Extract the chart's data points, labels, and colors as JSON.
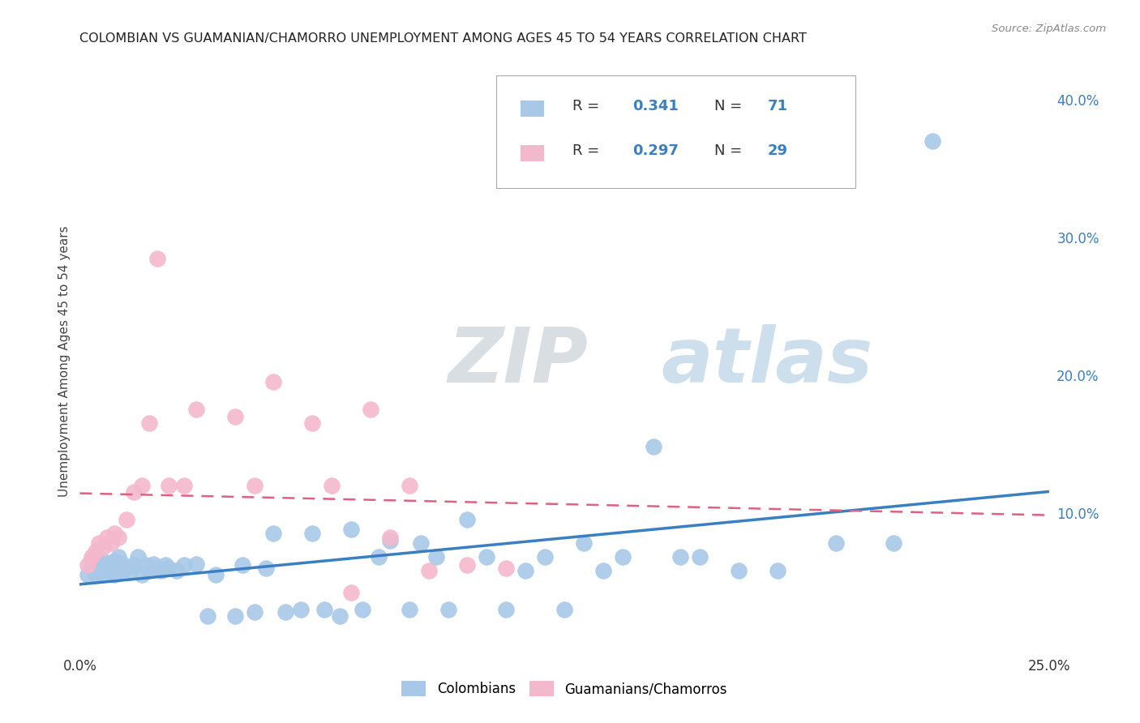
{
  "title": "COLOMBIAN VS GUAMANIAN/CHAMORRO UNEMPLOYMENT AMONG AGES 45 TO 54 YEARS CORRELATION CHART",
  "source": "Source: ZipAtlas.com",
  "ylabel": "Unemployment Among Ages 45 to 54 years",
  "xlim": [
    0.0,
    0.25
  ],
  "ylim": [
    0.0,
    0.42
  ],
  "yticks_right": [
    0.1,
    0.2,
    0.3,
    0.4
  ],
  "yticklabels_right": [
    "10.0%",
    "20.0%",
    "30.0%",
    "40.0%"
  ],
  "colombian_color": "#a8c8e8",
  "guamanian_color": "#f4b8cc",
  "colombian_line_color": "#3a7fc1",
  "guamanian_line_color": "#e06080",
  "R_colombian": 0.341,
  "N_colombian": 71,
  "R_guamanian": 0.297,
  "N_guamanian": 29,
  "legend_label_colombian": "Colombians",
  "legend_label_guamanian": "Guamanians/Chamorros",
  "colombian_x": [
    0.002,
    0.003,
    0.003,
    0.004,
    0.004,
    0.005,
    0.005,
    0.006,
    0.006,
    0.007,
    0.007,
    0.008,
    0.008,
    0.009,
    0.009,
    0.01,
    0.01,
    0.011,
    0.011,
    0.012,
    0.013,
    0.014,
    0.015,
    0.016,
    0.017,
    0.018,
    0.019,
    0.02,
    0.021,
    0.022,
    0.023,
    0.025,
    0.027,
    0.03,
    0.033,
    0.035,
    0.04,
    0.042,
    0.045,
    0.048,
    0.05,
    0.053,
    0.057,
    0.06,
    0.063,
    0.067,
    0.07,
    0.073,
    0.077,
    0.08,
    0.085,
    0.088,
    0.092,
    0.095,
    0.1,
    0.105,
    0.11,
    0.115,
    0.12,
    0.125,
    0.13,
    0.135,
    0.14,
    0.148,
    0.155,
    0.16,
    0.17,
    0.18,
    0.195,
    0.21,
    0.22
  ],
  "colombian_y": [
    0.055,
    0.06,
    0.065,
    0.055,
    0.068,
    0.058,
    0.062,
    0.055,
    0.065,
    0.058,
    0.063,
    0.06,
    0.058,
    0.065,
    0.055,
    0.062,
    0.068,
    0.058,
    0.063,
    0.06,
    0.058,
    0.062,
    0.068,
    0.055,
    0.062,
    0.058,
    0.063,
    0.06,
    0.058,
    0.062,
    0.06,
    0.058,
    0.062,
    0.063,
    0.025,
    0.055,
    0.025,
    0.062,
    0.028,
    0.06,
    0.085,
    0.028,
    0.03,
    0.085,
    0.03,
    0.025,
    0.088,
    0.03,
    0.068,
    0.08,
    0.03,
    0.078,
    0.068,
    0.03,
    0.095,
    0.068,
    0.03,
    0.058,
    0.068,
    0.03,
    0.078,
    0.058,
    0.068,
    0.148,
    0.068,
    0.068,
    0.058,
    0.058,
    0.078,
    0.078,
    0.37
  ],
  "guamanian_x": [
    0.002,
    0.003,
    0.004,
    0.005,
    0.006,
    0.007,
    0.008,
    0.009,
    0.01,
    0.012,
    0.014,
    0.016,
    0.018,
    0.02,
    0.023,
    0.027,
    0.03,
    0.04,
    0.045,
    0.05,
    0.06,
    0.065,
    0.07,
    0.075,
    0.08,
    0.085,
    0.09,
    0.1,
    0.11
  ],
  "guamanian_y": [
    0.062,
    0.068,
    0.072,
    0.078,
    0.075,
    0.082,
    0.078,
    0.085,
    0.082,
    0.095,
    0.115,
    0.12,
    0.165,
    0.285,
    0.12,
    0.12,
    0.175,
    0.17,
    0.12,
    0.195,
    0.165,
    0.12,
    0.042,
    0.175,
    0.082,
    0.12,
    0.058,
    0.062,
    0.06
  ],
  "background_color": "#ffffff",
  "grid_color": "#cccccc"
}
